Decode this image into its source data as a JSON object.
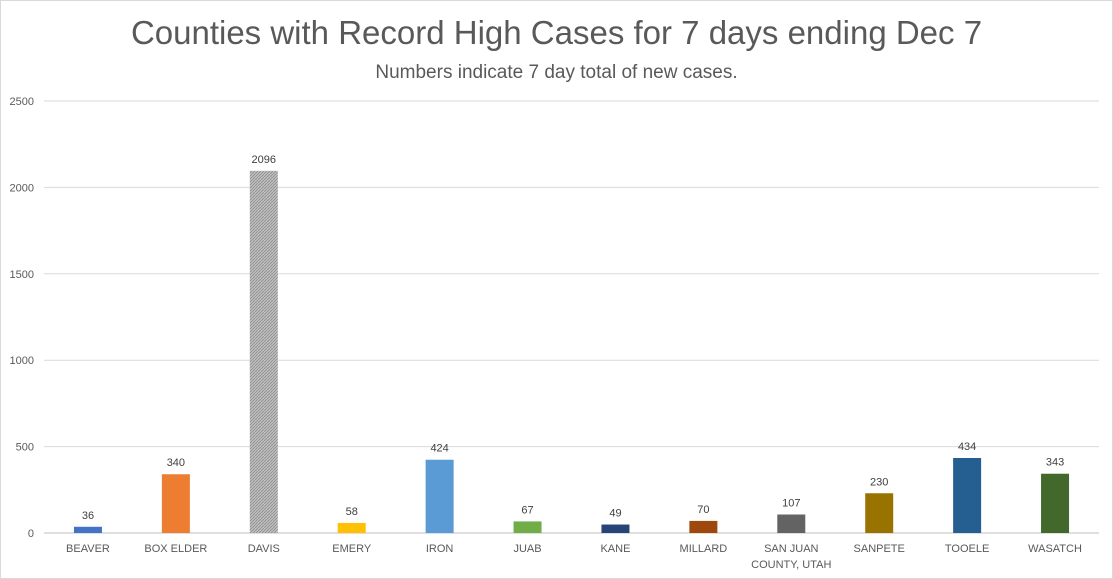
{
  "chart_data": {
    "type": "bar",
    "title": "Counties with Record High Cases for 7 days ending Dec 7",
    "subtitle": "Numbers indicate 7 day total of new cases.",
    "xlabel": "",
    "ylabel": "",
    "ylim": [
      0,
      2500
    ],
    "yticks": [
      0,
      500,
      1000,
      1500,
      2000,
      2500
    ],
    "grid": true,
    "legend": "none",
    "categories": [
      [
        "BEAVER"
      ],
      [
        "BOX ELDER"
      ],
      [
        "DAVIS"
      ],
      [
        "EMERY"
      ],
      [
        "IRON"
      ],
      [
        "JUAB"
      ],
      [
        "KANE"
      ],
      [
        "MILLARD"
      ],
      [
        "SAN JUAN",
        "COUNTY, UTAH"
      ],
      [
        "SANPETE"
      ],
      [
        "TOOELE"
      ],
      [
        "WASATCH"
      ]
    ],
    "values": [
      36,
      340,
      2096,
      58,
      424,
      67,
      49,
      70,
      107,
      230,
      434,
      343
    ],
    "colors": [
      "#4472c4",
      "#ed7d31",
      "#a5a5a5",
      "#ffc000",
      "#5b9bd5",
      "#70ad47",
      "#264478",
      "#9e480e",
      "#636363",
      "#997300",
      "#255e91",
      "#43682b"
    ],
    "patterned": [
      false,
      false,
      true,
      false,
      false,
      false,
      false,
      false,
      false,
      false,
      false,
      false
    ]
  }
}
